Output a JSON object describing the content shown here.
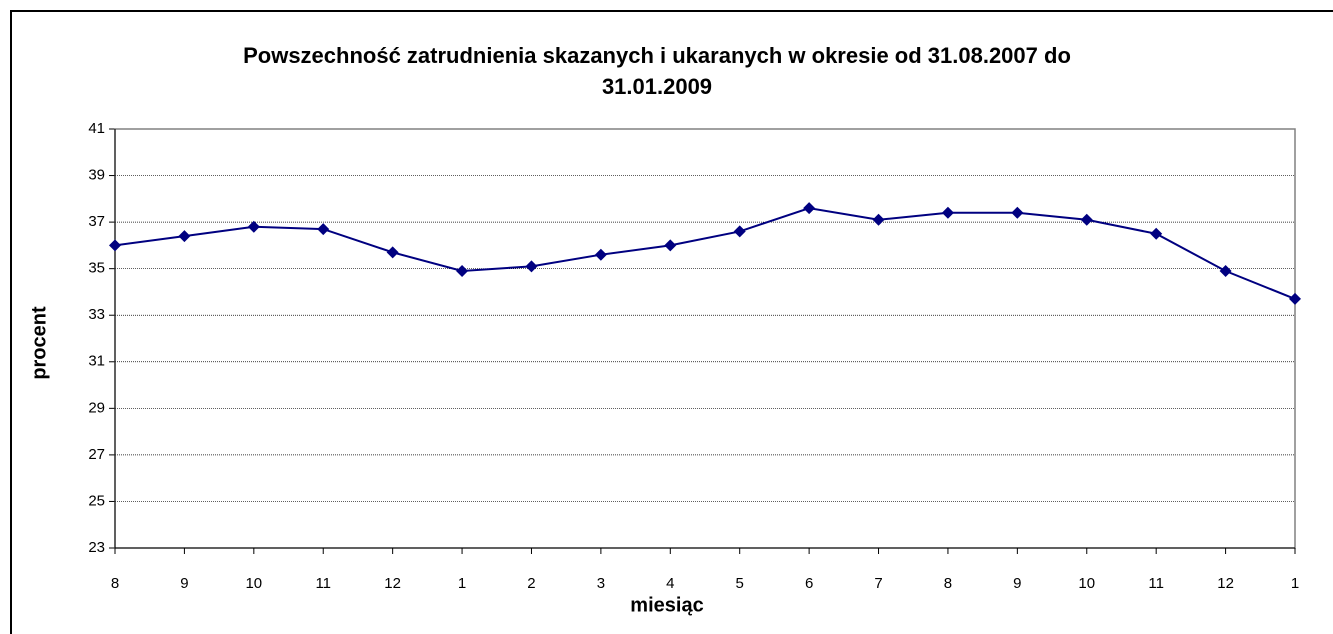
{
  "chart_data": {
    "type": "line",
    "title": "Powszechność zatrudnienia skazanych i ukaranych w okresie od 31.08.2007 do 31.01.2009",
    "x_label": "miesiąc",
    "y_label": "procent",
    "categories": [
      "8",
      "9",
      "10",
      "11",
      "12",
      "1",
      "2",
      "3",
      "4",
      "5",
      "6",
      "7",
      "8",
      "9",
      "10",
      "11",
      "12",
      "1"
    ],
    "series": [
      {
        "name": "procent",
        "color": "#000080",
        "values": [
          36.0,
          36.4,
          36.8,
          36.7,
          35.7,
          34.9,
          35.1,
          35.6,
          36.0,
          36.6,
          37.6,
          37.1,
          37.4,
          37.4,
          37.1,
          36.5,
          34.9,
          33.7
        ]
      }
    ],
    "ylim": [
      23,
      41
    ],
    "yticks": [
      23,
      25,
      27,
      29,
      31,
      33,
      35,
      37,
      39,
      41
    ],
    "grid": true
  }
}
